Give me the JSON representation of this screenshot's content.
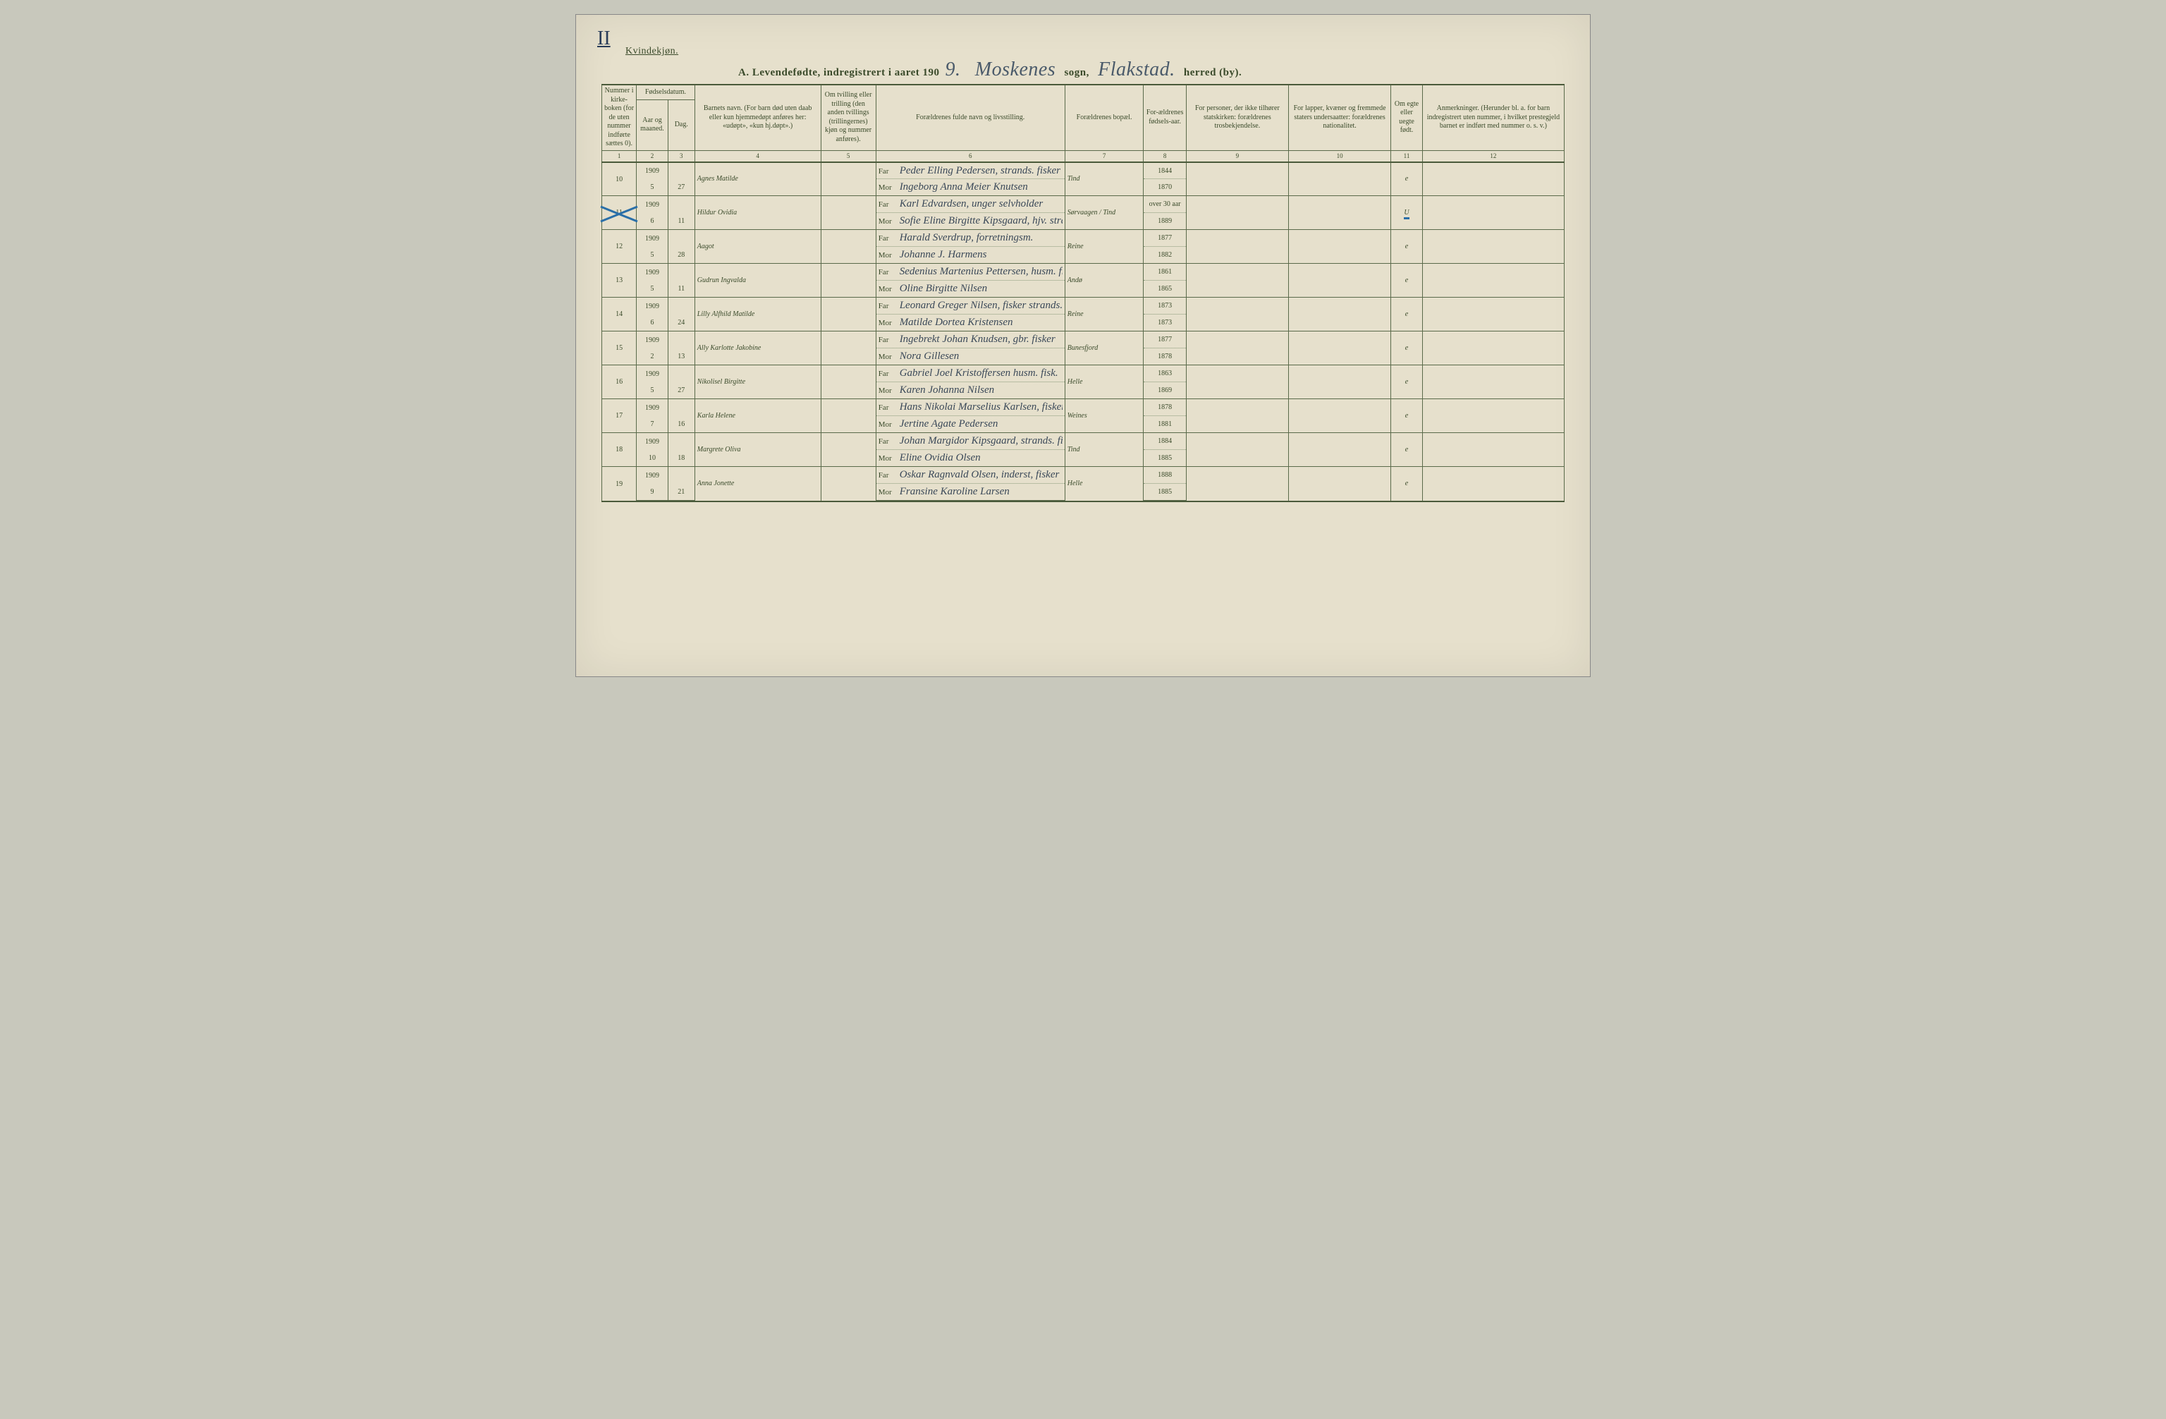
{
  "page_number": "II",
  "gender_label": "Kvindekjøn.",
  "title": {
    "prefix": "A.  Levendefødte, indregistrert i aaret 190",
    "year_suffix": "9.",
    "parish_handwritten": "Moskenes",
    "parish_label": "sogn,",
    "district_handwritten": "Flakstad.",
    "district_label": "herred (by)."
  },
  "columns": {
    "c1": "Nummer i kirke-boken (for de uten nummer indførte sættes 0).",
    "c2_group": "Fødselsdatum.",
    "c2a": "Aar og maaned.",
    "c2b": "Dag.",
    "c4": "Barnets navn.\n(For barn død uten daab eller kun hjemmedøpt anføres her: «udøpt», «kun hj.døpt».)",
    "c5": "Om tvilling eller trilling (den anden tvillings (trillingernes) kjøn og nummer anføres).",
    "c6": "Forældrenes fulde navn og livsstilling.",
    "c7": "Forældrenes bopæl.",
    "c8": "For-ældrenes fødsels-aar.",
    "c9": "For personer, der ikke tilhører statskirken: forældrenes trosbekjendelse.",
    "c10": "For lapper, kvæner og fremmede staters undersaatter: forældrenes nationalitet.",
    "c11": "Om egte eller uegte født.",
    "c12": "Anmerkninger.\n(Herunder bl. a. for barn indregistrert uten nummer, i hvilket prestegjeld barnet er indført med nummer o. s. v.)",
    "nums": [
      "1",
      "2",
      "3",
      "4",
      "5",
      "6",
      "7",
      "8",
      "9",
      "10",
      "11",
      "12"
    ]
  },
  "fm": {
    "far": "Far",
    "mor": "Mor"
  },
  "rows": [
    {
      "no": "10",
      "year": "1909",
      "month": "5",
      "day": "27",
      "name": "Agnes Matilde",
      "far": "Peder Elling Pedersen, strands. fisker",
      "mor": "Ingeborg Anna Meier Knutsen",
      "bopel": "Tind",
      "far_year": "1844",
      "mor_year": "1870",
      "egte": "e",
      "crossed": false,
      "egte_underline": false
    },
    {
      "no": "11",
      "year": "1909",
      "month": "6",
      "day": "11",
      "name": "Hildur Ovidia",
      "far": "Karl Edvardsen, unger selvholder",
      "mor": "Sofie Eline Birgitte Kipsgaard, hjv. strands.dtr",
      "bopel": "Sørvaagen / Tind",
      "far_year": "over 30 aar",
      "mor_year": "1889",
      "egte": "U",
      "crossed": true,
      "egte_underline": true
    },
    {
      "no": "12",
      "year": "1909",
      "month": "5",
      "day": "28",
      "name": "Aagot",
      "far": "Harald Sverdrup, forretningsm.",
      "mor": "Johanne J. Harmens",
      "bopel": "Reine",
      "far_year": "1877",
      "mor_year": "1882",
      "egte": "e",
      "crossed": false,
      "egte_underline": false
    },
    {
      "no": "13",
      "year": "1909",
      "month": "5",
      "day": "11",
      "name": "Gudrun Ingvalda",
      "far": "Sedenius Martenius Pettersen, husm. fisker",
      "mor": "Oline Birgitte Nilsen",
      "bopel": "Andø",
      "far_year": "1861",
      "mor_year": "1865",
      "egte": "e",
      "crossed": false,
      "egte_underline": false
    },
    {
      "no": "14",
      "year": "1909",
      "month": "6",
      "day": "24",
      "name": "Lilly Alfhild Matilde",
      "far": "Leonard Greger Nilsen, fisker strands.",
      "mor": "Matilde Dortea Kristensen",
      "bopel": "Reine",
      "far_year": "1873",
      "mor_year": "1873",
      "egte": "e",
      "crossed": false,
      "egte_underline": false
    },
    {
      "no": "15",
      "year": "1909",
      "month": "2",
      "day": "13",
      "name": "Ally Karlotte Jakobine",
      "far": "Ingebrekt Johan Knudsen, gbr. fisker",
      "mor": "Nora Gillesen",
      "bopel": "Bunesfjord",
      "far_year": "1877",
      "mor_year": "1878",
      "egte": "e",
      "crossed": false,
      "egte_underline": false
    },
    {
      "no": "16",
      "year": "1909",
      "month": "5",
      "day": "27",
      "name": "Nikolisel Birgitte",
      "far": "Gabriel Joel Kristoffersen husm. fisk.",
      "mor": "Karen Johanna Nilsen",
      "bopel": "Helle",
      "far_year": "1863",
      "mor_year": "1869",
      "egte": "e",
      "crossed": false,
      "egte_underline": false
    },
    {
      "no": "17",
      "year": "1909",
      "month": "7",
      "day": "16",
      "name": "Karla Helene",
      "far": "Hans Nikolai Marselius Karlsen, fisker, strands.",
      "mor": "Jertine Agate Pedersen",
      "bopel": "Weines",
      "far_year": "1878",
      "mor_year": "1881",
      "egte": "e",
      "crossed": false,
      "egte_underline": false
    },
    {
      "no": "18",
      "year": "1909",
      "month": "10",
      "day": "18",
      "name": "Margrete Oliva",
      "far": "Johan Margidor Kipsgaard, strands. fisker",
      "mor": "Eline Ovidia Olsen",
      "bopel": "Tind",
      "far_year": "1884",
      "mor_year": "1885",
      "egte": "e",
      "crossed": false,
      "egte_underline": false
    },
    {
      "no": "19",
      "year": "1909",
      "month": "9",
      "day": "21",
      "name": "Anna Jonette",
      "far": "Oskar Ragnvald Olsen, inderst, fisker",
      "mor": "Fransine Karoline Larsen",
      "bopel": "Helle",
      "far_year": "1888",
      "mor_year": "1885",
      "egte": "e",
      "crossed": false,
      "egte_underline": false
    }
  ],
  "colors": {
    "paper": "#e6e0cc",
    "ink_print": "#3a4a2a",
    "ink_hand": "#3a4858",
    "rule": "#5a6a4a",
    "blue_mark": "#2a6fa8"
  }
}
